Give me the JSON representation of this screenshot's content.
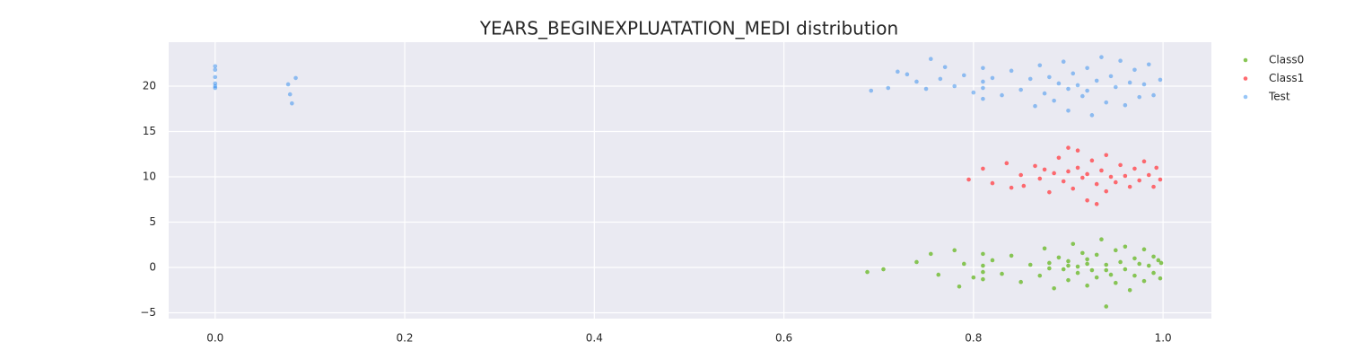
{
  "chart_data": {
    "type": "scatter",
    "title": "YEARS_BEGINEXPLUATATION_MEDI distribution",
    "xlim": [
      -0.049,
      1.051
    ],
    "ylim": [
      -5.64,
      24.85
    ],
    "xticks": [
      {
        "value": 0,
        "label": "0.0"
      },
      0.2,
      0.4,
      0.6,
      0.8,
      {
        "value": 1,
        "label": "1.0"
      }
    ],
    "yticks": [
      {
        "value": -5,
        "label": "−5"
      },
      0,
      5,
      10,
      15,
      20
    ],
    "grid": true,
    "legend": "outside-right",
    "series": [
      {
        "name": "Class0",
        "color": "#7bc043",
        "x": [
          0.688,
          0.705,
          0.74,
          0.755,
          0.763,
          0.78,
          0.785,
          0.79,
          0.8,
          0.81,
          0.81,
          0.81,
          0.81,
          0.82,
          0.83,
          0.84,
          0.85,
          0.86,
          0.87,
          0.875,
          0.88,
          0.885,
          0.89,
          0.895,
          0.9,
          0.9,
          0.905,
          0.91,
          0.91,
          0.915,
          0.92,
          0.92,
          0.925,
          0.93,
          0.93,
          0.935,
          0.94,
          0.94,
          0.945,
          0.95,
          0.95,
          0.955,
          0.96,
          0.96,
          0.965,
          0.97,
          0.97,
          0.975,
          0.98,
          0.98,
          0.985,
          0.99,
          0.99,
          0.995,
          0.997,
          0.998,
          0.88,
          0.9,
          0.92,
          0.94
        ],
        "values": [
          -0.5,
          -0.2,
          0.6,
          1.5,
          -0.8,
          1.9,
          -2.1,
          0.4,
          -1.1,
          1.5,
          -0.5,
          0.2,
          -1.3,
          0.8,
          -0.7,
          1.3,
          -1.6,
          0.3,
          -0.9,
          2.1,
          0.5,
          -2.3,
          1.1,
          -0.2,
          0.7,
          -1.4,
          2.6,
          0.1,
          -0.6,
          1.6,
          -2.0,
          0.9,
          -0.3,
          1.4,
          -1.1,
          3.1,
          0.3,
          -4.3,
          -0.8,
          1.9,
          -1.7,
          0.6,
          -0.2,
          2.3,
          -2.5,
          1.0,
          -0.9,
          0.4,
          -1.5,
          2.0,
          0.2,
          -0.6,
          1.2,
          0.8,
          -1.2,
          0.5,
          -0.1,
          0.2,
          0.4,
          -0.3
        ]
      },
      {
        "name": "Class1",
        "color": "#fe5a5f",
        "x": [
          0.795,
          0.81,
          0.82,
          0.835,
          0.84,
          0.85,
          0.853,
          0.865,
          0.87,
          0.875,
          0.88,
          0.885,
          0.89,
          0.895,
          0.9,
          0.9,
          0.905,
          0.91,
          0.915,
          0.92,
          0.92,
          0.925,
          0.93,
          0.935,
          0.94,
          0.94,
          0.945,
          0.95,
          0.955,
          0.96,
          0.965,
          0.97,
          0.975,
          0.98,
          0.985,
          0.99,
          0.993,
          0.997,
          0.93,
          0.91
        ],
        "values": [
          9.7,
          10.9,
          9.3,
          11.5,
          8.8,
          10.2,
          9.0,
          11.2,
          9.8,
          10.8,
          8.3,
          10.4,
          12.1,
          9.5,
          10.6,
          13.2,
          8.7,
          11.0,
          9.9,
          7.4,
          10.3,
          11.8,
          9.2,
          10.7,
          8.4,
          12.4,
          10.0,
          9.4,
          11.3,
          10.1,
          8.9,
          10.9,
          9.6,
          11.7,
          10.2,
          8.9,
          11.0,
          9.7,
          7.0,
          12.9
        ]
      },
      {
        "name": "Test",
        "color": "#1a80ee",
        "x": [
          0,
          0,
          0,
          0,
          0,
          0,
          0.077,
          0.079,
          0.081,
          0.085,
          0.692,
          0.71,
          0.72,
          0.73,
          0.74,
          0.75,
          0.755,
          0.765,
          0.77,
          0.78,
          0.79,
          0.8,
          0.81,
          0.81,
          0.81,
          0.81,
          0.82,
          0.83,
          0.84,
          0.85,
          0.86,
          0.865,
          0.87,
          0.875,
          0.88,
          0.885,
          0.89,
          0.895,
          0.9,
          0.9,
          0.905,
          0.91,
          0.915,
          0.92,
          0.92,
          0.925,
          0.93,
          0.935,
          0.94,
          0.945,
          0.95,
          0.955,
          0.96,
          0.965,
          0.97,
          0.975,
          0.98,
          0.985,
          0.99,
          0.997
        ],
        "values": [
          19.8,
          20.3,
          21.0,
          21.8,
          22.2,
          20.0,
          20.2,
          19.1,
          18.1,
          20.9,
          19.5,
          19.8,
          21.6,
          21.3,
          20.5,
          19.7,
          23.0,
          20.8,
          22.1,
          20.0,
          21.2,
          19.3,
          22.0,
          20.5,
          18.6,
          19.8,
          20.9,
          19.0,
          21.7,
          19.6,
          20.8,
          17.8,
          22.3,
          19.2,
          21.0,
          18.4,
          20.3,
          22.7,
          19.7,
          17.3,
          21.4,
          20.1,
          18.9,
          22.0,
          19.5,
          16.8,
          20.6,
          23.2,
          18.2,
          21.1,
          19.9,
          22.8,
          17.9,
          20.4,
          21.8,
          18.8,
          20.2,
          22.4,
          19.0,
          20.7
        ]
      }
    ]
  }
}
